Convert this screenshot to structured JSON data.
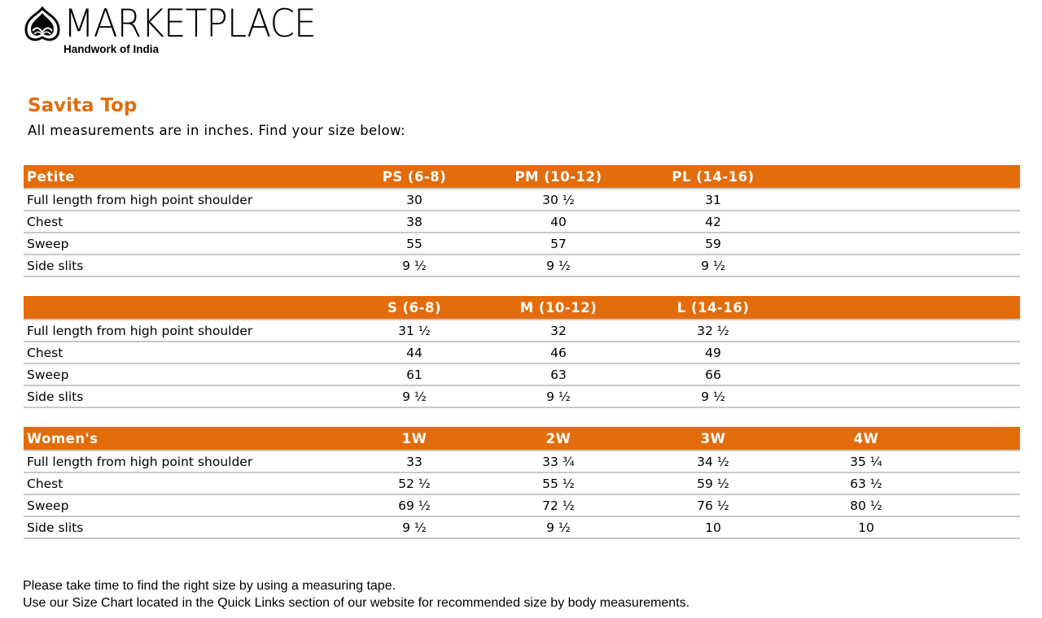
{
  "colors": {
    "accent": "#E36C0A"
  },
  "logo": {
    "brand": "MARKETPLACE",
    "tagline": "Handwork of India",
    "icon": "hands-leaf-logo"
  },
  "title": "Savita Top",
  "subtitle": "All measurements are in inches. Find your size below:",
  "tables": [
    {
      "header": "Petite",
      "sizes": [
        "PS (6-8)",
        "PM (10-12)",
        "PL (14-16)",
        ""
      ],
      "rows": [
        {
          "label": "Full length from high point shoulder",
          "values": [
            "30",
            "30 ½",
            "31",
            ""
          ]
        },
        {
          "label": "Chest",
          "values": [
            "38",
            "40",
            "42",
            ""
          ]
        },
        {
          "label": "Sweep",
          "values": [
            "55",
            "57",
            "59",
            ""
          ]
        },
        {
          "label": "Side slits",
          "values": [
            "9 ½",
            "9 ½",
            "9 ½",
            ""
          ]
        }
      ]
    },
    {
      "header": "",
      "sizes": [
        "S (6-8)",
        "M (10-12)",
        "L (14-16)",
        ""
      ],
      "rows": [
        {
          "label": "Full length from high point shoulder",
          "values": [
            "31 ½",
            "32",
            "32 ½",
            ""
          ]
        },
        {
          "label": "Chest",
          "values": [
            "44",
            "46",
            "49",
            ""
          ]
        },
        {
          "label": "Sweep",
          "values": [
            "61",
            "63",
            "66",
            ""
          ]
        },
        {
          "label": "Side slits",
          "values": [
            "9 ½",
            "9 ½",
            "9 ½",
            ""
          ]
        }
      ]
    },
    {
      "header": "Women's",
      "sizes": [
        "1W",
        "2W",
        "3W",
        "4W"
      ],
      "rows": [
        {
          "label": "Full length from high point shoulder",
          "values": [
            "33",
            "33 ¾",
            "34 ½",
            "35 ¼"
          ]
        },
        {
          "label": "Chest",
          "values": [
            "52 ½",
            "55 ½",
            "59 ½",
            "63 ½"
          ]
        },
        {
          "label": "Sweep",
          "values": [
            "69 ½",
            "72 ½",
            "76 ½",
            "80 ½"
          ]
        },
        {
          "label": "Side slits",
          "values": [
            "9 ½",
            "9 ½",
            "10",
            "10"
          ]
        }
      ]
    }
  ],
  "footer": {
    "line1": "Please take time to find the right size by using a measuring tape.",
    "line2": "Use our Size Chart located in the Quick Links section of our website for recommended size by body measurements."
  }
}
